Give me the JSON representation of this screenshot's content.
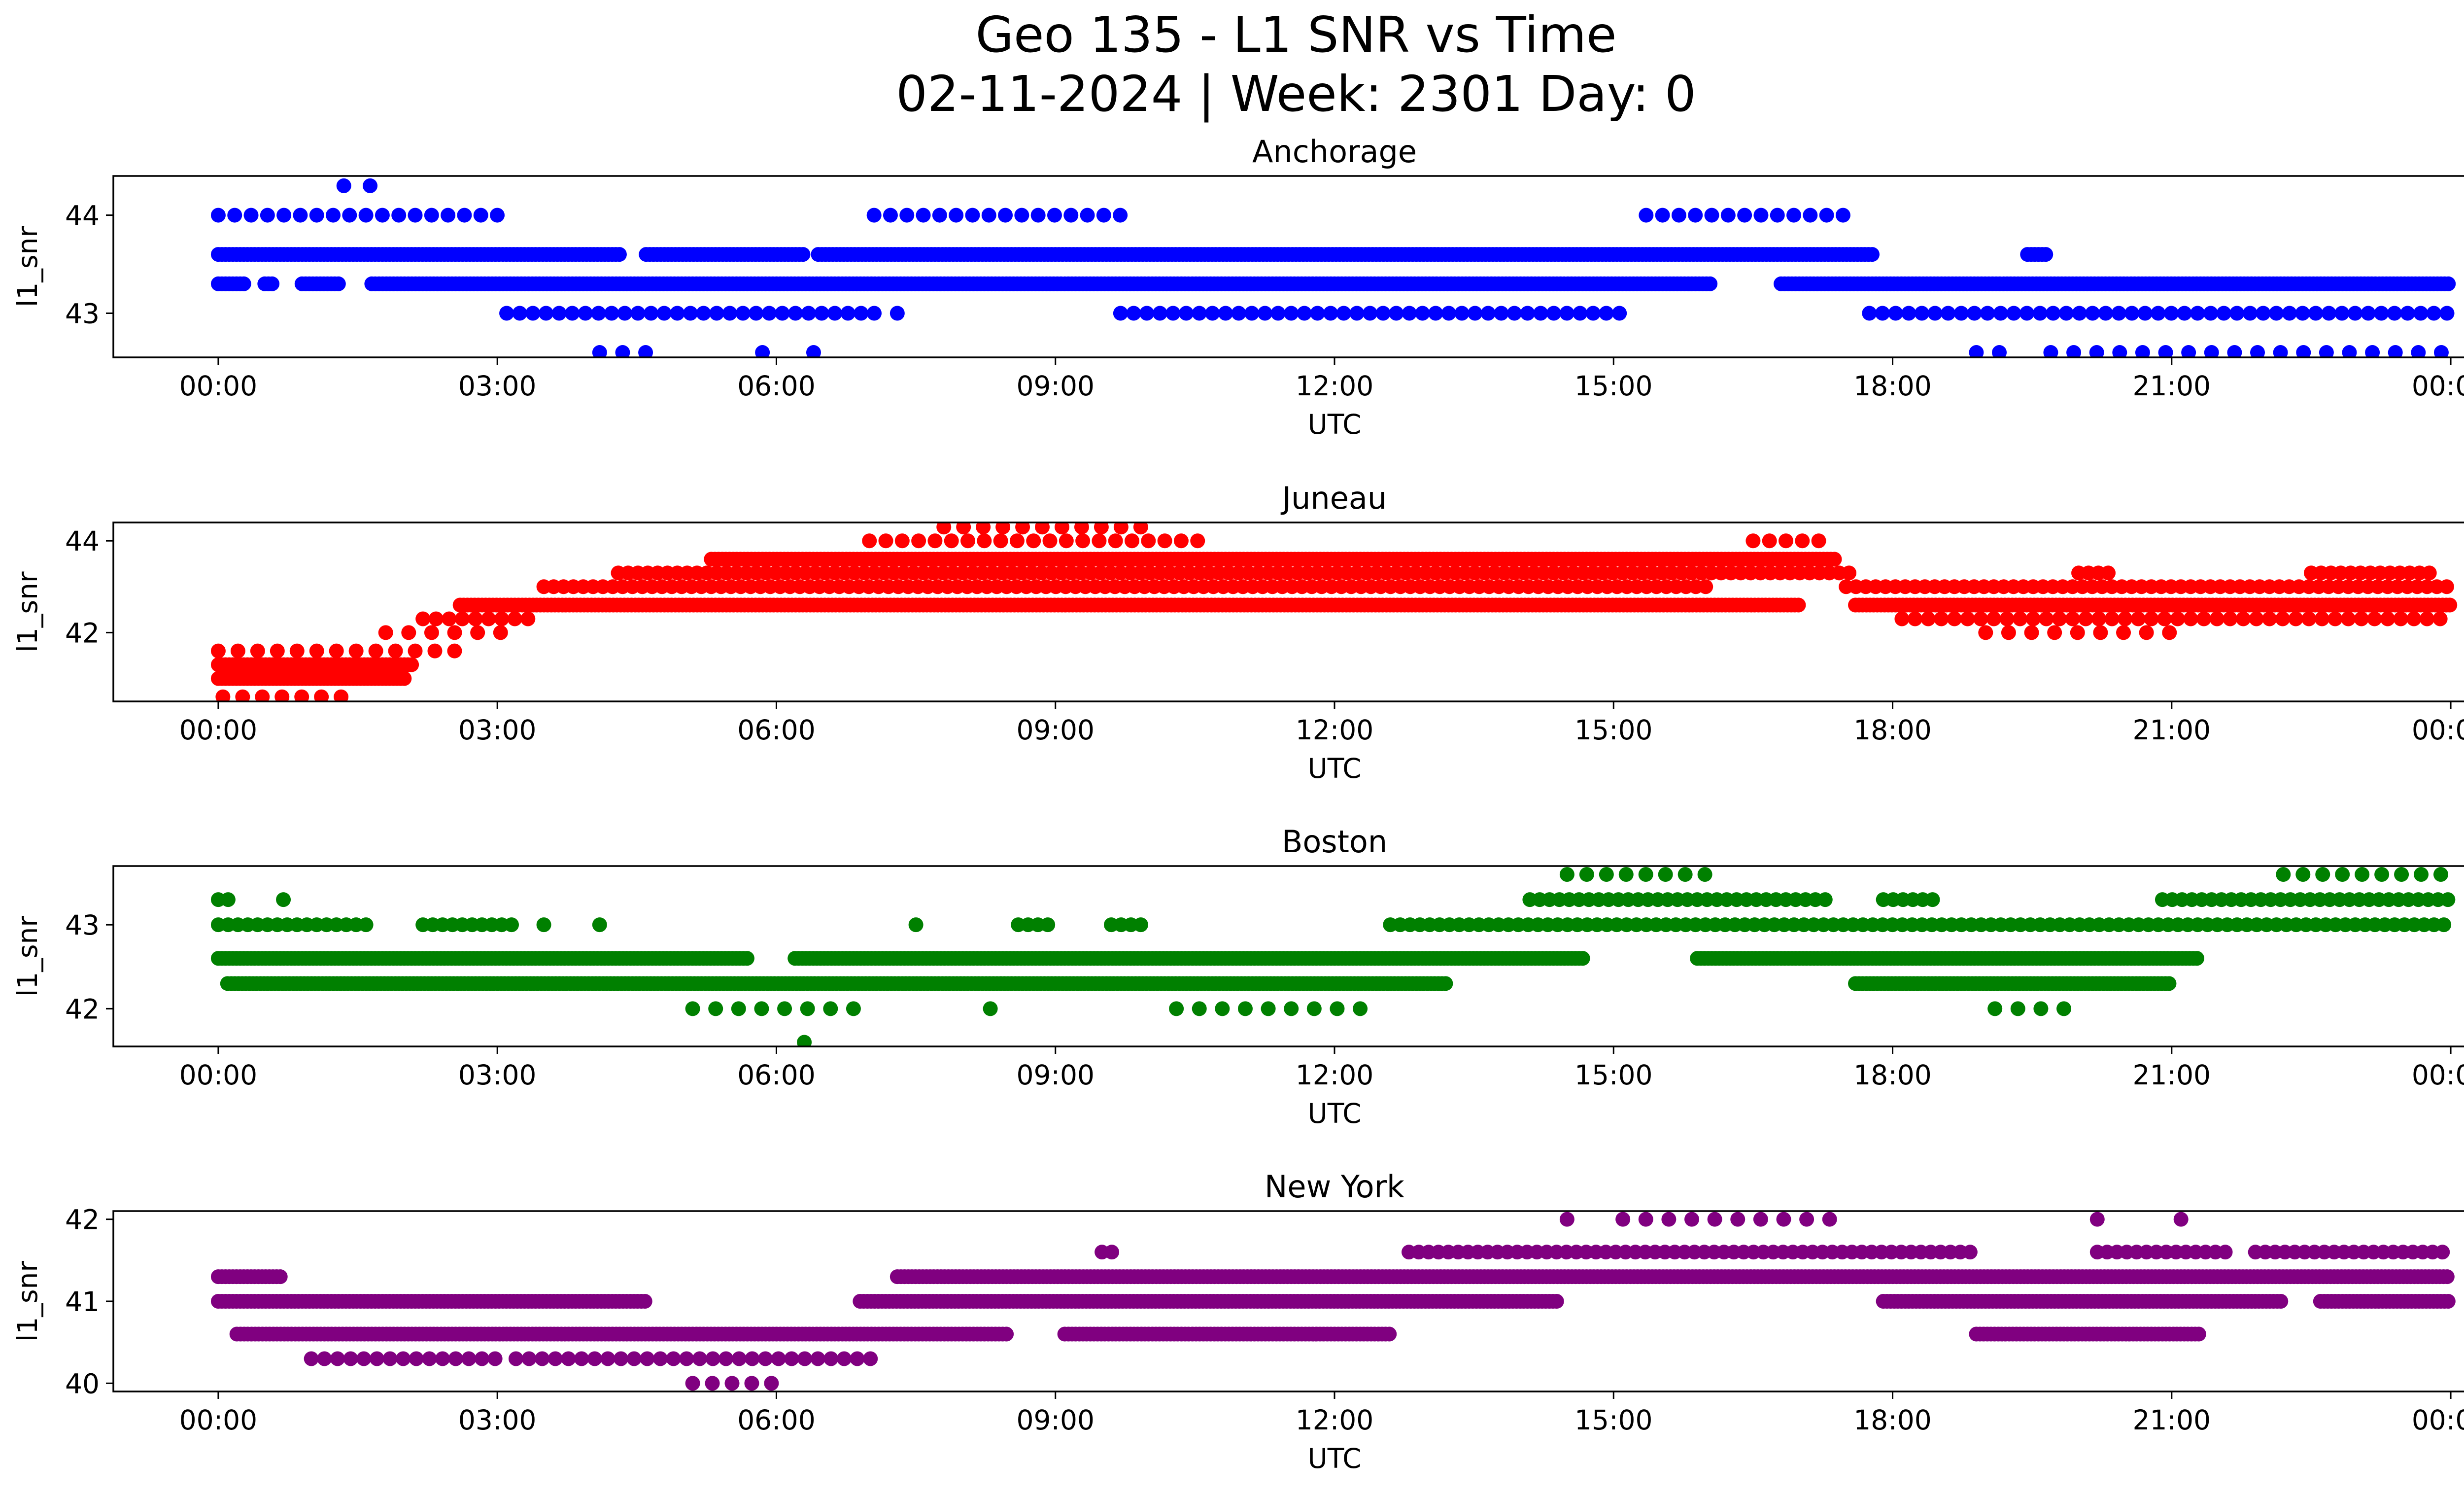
{
  "figure": {
    "title_line1": "Geo 135 - L1 SNR vs Time",
    "title_line2": "02-11-2024 | Week: 2301 Day: 0"
  },
  "chart_data": [
    {
      "type": "scatter",
      "title": "Anchorage",
      "xlabel": "UTC",
      "ylabel": "l1_snr",
      "color": "#0000ff",
      "xlim": [
        "00:00",
        "24:00"
      ],
      "ylim": [
        42.55,
        44.4
      ],
      "yticks": [
        43,
        44
      ],
      "xtick_labels": [
        "00:00",
        "03:00",
        "06:00",
        "09:00",
        "12:00",
        "15:00",
        "18:00",
        "21:00",
        "00:00"
      ],
      "bands": [
        {
          "y": 44.3,
          "segments": [
            [
              1.35,
              1.85
            ]
          ],
          "density": 3
        },
        {
          "y": 44.0,
          "segments": [
            [
              0.0,
              3.0
            ],
            [
              7.05,
              9.7
            ],
            [
              15.35,
              17.5
            ]
          ],
          "density": 6
        },
        {
          "y": 43.6,
          "segments": [
            [
              0.0,
              4.35
            ],
            [
              4.6,
              6.3
            ],
            [
              6.45,
              17.8
            ],
            [
              19.45,
              19.65
            ]
          ],
          "density": 10
        },
        {
          "y": 43.3,
          "segments": [
            [
              0.0,
              0.3
            ],
            [
              0.5,
              0.6
            ],
            [
              0.9,
              1.3
            ],
            [
              1.65,
              16.05
            ],
            [
              16.8,
              24.0
            ]
          ],
          "density": 10
        },
        {
          "y": 43.0,
          "segments": [
            [
              3.1,
              7.1
            ],
            [
              7.3,
              7.3
            ],
            [
              9.7,
              15.1
            ],
            [
              17.75,
              24.0
            ]
          ],
          "density": 7
        },
        {
          "y": 42.6,
          "segments": [
            [
              4.1,
              4.7
            ],
            [
              5.85,
              5.85
            ],
            [
              6.4,
              6.55
            ],
            [
              18.9,
              19.2
            ],
            [
              19.7,
              24.0
            ]
          ],
          "density": 4
        }
      ]
    },
    {
      "type": "scatter",
      "title": "Juneau",
      "xlabel": "UTC",
      "ylabel": "l1_snr",
      "color": "#ff0000",
      "xlim": [
        "00:00",
        "24:00"
      ],
      "ylim": [
        40.5,
        44.4
      ],
      "yticks": [
        42,
        44
      ],
      "xtick_labels": [
        "00:00",
        "03:00",
        "06:00",
        "09:00",
        "12:00",
        "15:00",
        "18:00",
        "21:00",
        "00:00"
      ],
      "bands": [
        {
          "y": 44.3,
          "segments": [
            [
              7.8,
              10.0
            ]
          ],
          "density": 5
        },
        {
          "y": 44.0,
          "segments": [
            [
              7.0,
              10.6
            ],
            [
              16.5,
              17.3
            ]
          ],
          "density": 6
        },
        {
          "y": 43.6,
          "segments": [
            [
              5.3,
              17.4
            ]
          ],
          "density": 10
        },
        {
          "y": 43.3,
          "segments": [
            [
              4.3,
              17.6
            ],
            [
              20.0,
              20.4
            ],
            [
              22.5,
              23.8
            ]
          ],
          "density": 8
        },
        {
          "y": 43.0,
          "segments": [
            [
              3.5,
              16.0
            ],
            [
              17.5,
              24.0
            ]
          ],
          "density": 8
        },
        {
          "y": 42.6,
          "segments": [
            [
              2.6,
              17.0
            ],
            [
              17.6,
              24.0
            ]
          ],
          "density": 10
        },
        {
          "y": 42.3,
          "segments": [
            [
              2.2,
              3.4
            ],
            [
              18.1,
              24.0
            ]
          ],
          "density": 7
        },
        {
          "y": 42.0,
          "segments": [
            [
              1.8,
              3.1
            ],
            [
              19.0,
              21.0
            ]
          ],
          "density": 4
        },
        {
          "y": 41.6,
          "segments": [
            [
              0.0,
              2.6
            ]
          ],
          "density": 5
        },
        {
          "y": 41.3,
          "segments": [
            [
              0.0,
              2.1
            ]
          ],
          "density": 10
        },
        {
          "y": 41.0,
          "segments": [
            [
              0.0,
              2.0
            ]
          ],
          "density": 10
        },
        {
          "y": 40.6,
          "segments": [
            [
              0.05,
              1.5
            ]
          ],
          "density": 5
        }
      ]
    },
    {
      "type": "scatter",
      "title": "Boston",
      "xlabel": "UTC",
      "ylabel": "l1_snr",
      "color": "#008000",
      "xlim": [
        "00:00",
        "24:00"
      ],
      "ylim": [
        41.55,
        43.7
      ],
      "yticks": [
        42,
        43
      ],
      "xtick_labels": [
        "00:00",
        "03:00",
        "06:00",
        "09:00",
        "12:00",
        "15:00",
        "18:00",
        "21:00",
        "00:00"
      ],
      "bands": [
        {
          "y": 43.6,
          "segments": [
            [
              14.5,
              16.0
            ],
            [
              22.2,
              24.0
            ]
          ],
          "density": 5
        },
        {
          "y": 43.3,
          "segments": [
            [
              0.0,
              0.2
            ],
            [
              0.7,
              0.7
            ],
            [
              14.1,
              17.3
            ],
            [
              17.9,
              18.5
            ],
            [
              20.9,
              24.0
            ]
          ],
          "density": 8
        },
        {
          "y": 43.0,
          "segments": [
            [
              0.0,
              1.6
            ],
            [
              2.2,
              3.2
            ],
            [
              3.5,
              3.5
            ],
            [
              4.1,
              4.2
            ],
            [
              7.5,
              7.6
            ],
            [
              8.6,
              9.0
            ],
            [
              9.6,
              10.0
            ],
            [
              12.6,
              24.0
            ]
          ],
          "density": 8
        },
        {
          "y": 42.6,
          "segments": [
            [
              0.0,
              5.7
            ],
            [
              6.2,
              14.7
            ],
            [
              15.9,
              21.3
            ]
          ],
          "density": 10
        },
        {
          "y": 42.3,
          "segments": [
            [
              0.1,
              13.2
            ],
            [
              17.6,
              21.0
            ]
          ],
          "density": 10
        },
        {
          "y": 42.0,
          "segments": [
            [
              5.1,
              7.0
            ],
            [
              8.3,
              8.3
            ],
            [
              10.3,
              12.4
            ],
            [
              19.1,
              19.9
            ]
          ],
          "density": 4
        },
        {
          "y": 41.6,
          "segments": [
            [
              6.3,
              6.3
            ]
          ],
          "density": 1
        }
      ]
    },
    {
      "type": "scatter",
      "title": "New York",
      "xlabel": "UTC",
      "ylabel": "l1_snr",
      "color": "#800080",
      "xlim": [
        "00:00",
        "24:00"
      ],
      "ylim": [
        39.9,
        42.1
      ],
      "yticks": [
        40,
        41,
        42
      ],
      "xtick_labels": [
        "00:00",
        "03:00",
        "06:00",
        "09:00",
        "12:00",
        "15:00",
        "18:00",
        "21:00",
        "00:00"
      ],
      "bands": [
        {
          "y": 42.0,
          "segments": [
            [
              14.5,
              14.5
            ],
            [
              15.1,
              17.5
            ],
            [
              20.2,
              20.2
            ],
            [
              21.1,
              21.1
            ]
          ],
          "density": 4
        },
        {
          "y": 41.6,
          "segments": [
            [
              9.5,
              9.7
            ],
            [
              12.8,
              18.9
            ],
            [
              20.2,
              21.6
            ],
            [
              21.9,
              24.0
            ]
          ],
          "density": 8
        },
        {
          "y": 41.3,
          "segments": [
            [
              0.0,
              0.7
            ],
            [
              7.3,
              24.0
            ]
          ],
          "density": 10
        },
        {
          "y": 41.0,
          "segments": [
            [
              0.0,
              4.6
            ],
            [
              6.9,
              14.4
            ],
            [
              17.9,
              22.2
            ],
            [
              22.6,
              24.0
            ]
          ],
          "density": 9
        },
        {
          "y": 40.6,
          "segments": [
            [
              0.2,
              8.5
            ],
            [
              9.1,
              12.6
            ],
            [
              18.9,
              21.3
            ]
          ],
          "density": 9
        },
        {
          "y": 40.3,
          "segments": [
            [
              1.0,
              3.0
            ],
            [
              3.2,
              7.1
            ]
          ],
          "density": 7
        },
        {
          "y": 40.0,
          "segments": [
            [
              5.1,
              6.1
            ]
          ],
          "density": 5
        }
      ]
    }
  ]
}
